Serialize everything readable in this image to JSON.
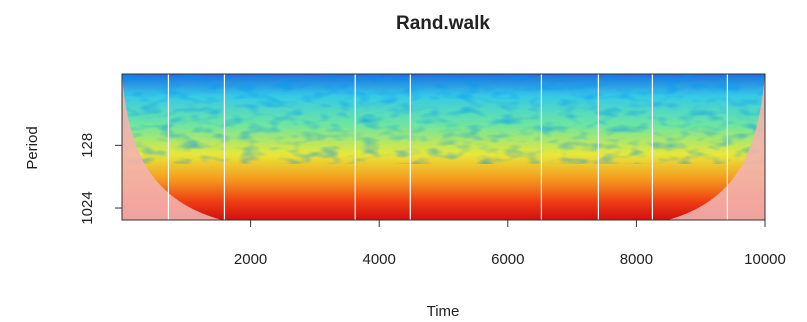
{
  "chart_data": {
    "type": "wavelet-power",
    "title": "Rand.walk",
    "x_label": "Time",
    "y_label": "Period",
    "xlim": [
      0,
      10000
    ],
    "xticks": [
      2000,
      4000,
      6000,
      8000,
      10000
    ],
    "ylim": [
      12,
      1524
    ],
    "yticks": [
      128,
      1024
    ],
    "y_log_scale": true,
    "y_reversed": true,
    "vlines": [
      722,
      1593,
      3627,
      4484,
      6523,
      7409,
      8249,
      9415
    ],
    "vline_color": "#ffffff"
  }
}
